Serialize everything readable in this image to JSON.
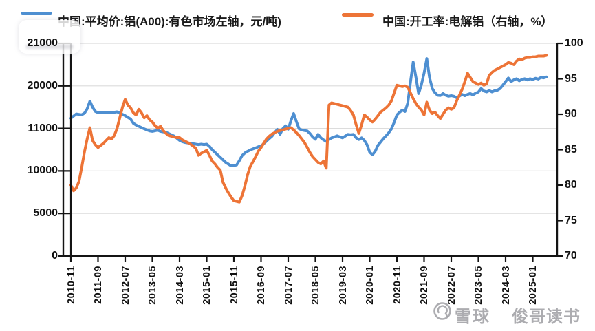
{
  "legend": [
    {
      "label": "中国:平均价:铝(A00):有色市场左轴，元/吨)",
      "color": "#4e8fd1"
    },
    {
      "label": "中国:开工率:电解铝（右轴，%）",
      "color": "#ed7437"
    }
  ],
  "watermark": {
    "brand": "雪球",
    "user": "俊哥读书",
    "logo": "xueqiu-snowball-icon",
    "color": "#9e9ea2"
  },
  "colors": {
    "price_line": "#4e8fd1",
    "rate_line": "#ed7437",
    "grid": "#dcdcdc",
    "axis": "#141414"
  },
  "chart_data": {
    "type": "line",
    "title": "",
    "x_start": "2010-11",
    "x_end": "2025-06",
    "x_freq": "monthly",
    "x_tick_labels": [
      "2010-11",
      "2011-09",
      "2012-07",
      "2013-05",
      "2014-03",
      "2015-01",
      "2015-11",
      "2016-09",
      "2017-07",
      "2018-05",
      "2019-03",
      "2020-01",
      "2020-11",
      "2021-09",
      "2022-07",
      "2023-05",
      "2024-03",
      "2025-01"
    ],
    "left_axis": {
      "tick_labels": [
        "21000",
        "20000",
        "11000",
        "10000",
        "5000",
        "0"
      ],
      "mapped_range": [
        0,
        25000
      ]
    },
    "right_axis": {
      "tick_labels": [
        "100",
        "95",
        "90",
        "85",
        "80",
        "75",
        "70"
      ],
      "range": [
        70,
        100
      ]
    },
    "grid": true,
    "legend_position": "top",
    "series": [
      {
        "name": "中国:平均价:铝(A00):有色市场左轴，元/吨",
        "axis": "left",
        "color": "#4e8fd1",
        "values": [
          16200,
          16450,
          16700,
          16650,
          16600,
          16800,
          17300,
          18200,
          17500,
          17000,
          16850,
          16880,
          16900,
          16870,
          16850,
          16880,
          16900,
          16950,
          16800,
          16650,
          16500,
          16300,
          16100,
          15600,
          15400,
          15250,
          15100,
          14950,
          14820,
          14700,
          14650,
          14720,
          14790,
          14650,
          14590,
          14540,
          14400,
          14250,
          14100,
          13850,
          13600,
          13450,
          13350,
          13300,
          13250,
          13200,
          13150,
          13100,
          13150,
          13100,
          13150,
          12900,
          12500,
          12200,
          11900,
          11600,
          11300,
          11000,
          10800,
          10600,
          10650,
          10700,
          11200,
          11800,
          12100,
          12300,
          12460,
          12600,
          12700,
          12850,
          12940,
          13200,
          13510,
          13800,
          14080,
          14500,
          14890,
          14320,
          14970,
          15300,
          14900,
          15900,
          16750,
          15800,
          14950,
          14820,
          14750,
          14700,
          14400,
          14000,
          13730,
          14300,
          13900,
          13650,
          13480,
          13700,
          13890,
          14000,
          14130,
          14000,
          13890,
          14100,
          14300,
          14250,
          14300,
          13890,
          13700,
          13890,
          13600,
          13100,
          12200,
          11900,
          12300,
          13000,
          13400,
          13800,
          14130,
          14500,
          14950,
          15700,
          16580,
          16900,
          17160,
          17000,
          17970,
          20500,
          22800,
          21000,
          19100,
          20100,
          21500,
          23200,
          21000,
          19700,
          19200,
          18900,
          18870,
          19100,
          18900,
          18790,
          18850,
          18790,
          18600,
          18800,
          19000,
          18850,
          19000,
          19100,
          18950,
          19150,
          19280,
          19690,
          19400,
          19300,
          19440,
          19300,
          19440,
          19500,
          19690,
          20100,
          20500,
          20920,
          20510,
          20700,
          20840,
          20600,
          20750,
          20840,
          20700,
          20840,
          20750,
          20900,
          20800,
          21000,
          20950,
          21050
        ]
      },
      {
        "name": "中国:开工率:电解铝（右轴，%）",
        "axis": "right",
        "color": "#ed7437",
        "values": [
          80.0,
          79.2,
          79.6,
          80.5,
          82.5,
          84.7,
          86.5,
          88.1,
          86.3,
          85.7,
          85.3,
          85.6,
          85.9,
          86.3,
          86.7,
          86.5,
          87.0,
          88.0,
          89.5,
          91.0,
          92.1,
          91.3,
          90.9,
          90.2,
          89.9,
          90.7,
          90.2,
          89.5,
          89.8,
          89.2,
          88.9,
          88.4,
          88.0,
          88.3,
          87.7,
          87.3,
          87.0,
          86.9,
          86.8,
          86.7,
          86.7,
          86.4,
          86.2,
          86.0,
          85.8,
          85.5,
          85.2,
          84.2,
          84.5,
          84.7,
          84.9,
          84.2,
          83.4,
          83.0,
          82.5,
          82.1,
          80.4,
          79.6,
          78.9,
          78.3,
          77.8,
          77.7,
          77.6,
          78.5,
          79.8,
          81.4,
          82.6,
          83.3,
          84.0,
          84.8,
          85.3,
          85.9,
          86.5,
          86.9,
          87.2,
          87.4,
          87.6,
          87.7,
          87.8,
          87.9,
          88.0,
          88.1,
          87.8,
          87.4,
          87.0,
          86.5,
          86.0,
          85.3,
          84.6,
          84.0,
          83.6,
          83.2,
          83.0,
          83.4,
          82.4,
          91.3,
          91.6,
          91.5,
          91.4,
          91.3,
          91.2,
          91.1,
          91.0,
          90.5,
          89.9,
          88.5,
          87.3,
          88.5,
          89.9,
          89.6,
          89.2,
          88.9,
          89.3,
          89.8,
          90.3,
          90.6,
          90.9,
          91.3,
          91.9,
          93.0,
          94.1,
          94.0,
          93.9,
          94.0,
          93.8,
          93.0,
          92.2,
          91.5,
          91.0,
          90.6,
          89.9,
          91.7,
          90.6,
          90.1,
          90.3,
          89.8,
          89.4,
          90.0,
          90.6,
          90.9,
          90.7,
          90.9,
          91.9,
          92.7,
          93.5,
          94.6,
          95.8,
          95.2,
          94.6,
          94.4,
          94.2,
          94.4,
          94.1,
          94.3,
          95.5,
          95.9,
          96.2,
          96.4,
          96.6,
          96.8,
          97.0,
          97.3,
          97.2,
          97.0,
          97.5,
          97.8,
          97.7,
          97.9,
          98.0,
          98.0,
          98.1,
          98.1,
          98.2,
          98.2,
          98.2,
          98.3
        ]
      }
    ]
  }
}
